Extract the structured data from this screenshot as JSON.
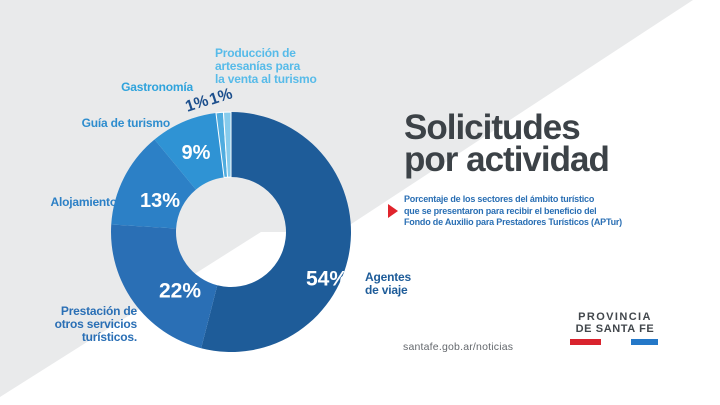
{
  "background": {
    "gray": "#E9EAEB",
    "white": "#FFFFFF"
  },
  "header": {
    "title": "Solicitudes\npor actividad",
    "title_color": "#3C4247",
    "subtitle": "Porcentaje de los sectores del ámbito turístico\nque se presentaron para recibir el beneficio del\nFondo de Auxilio para Prestadores Turísticos (APTur)",
    "subtitle_color": "#2A6FB4",
    "accent_red": "#E0242C"
  },
  "footer": {
    "url": "santafe.gob.ar/noticias"
  },
  "logo": {
    "line1": "PROVINCIA",
    "line2": "DE SANTA FE",
    "red_bar_color": "#D9232E",
    "blue_bar_color": "#2478C8"
  },
  "chart_data": {
    "type": "pie",
    "subtype": "donut",
    "title": "Solicitudes por actividad",
    "unit": "%",
    "total": 100,
    "start_angle_deg": 0,
    "direction": "clockwise",
    "segments": [
      {
        "label": "Agentes de viaje",
        "label_display": "Agentes\nde viaje",
        "value": 54,
        "color": "#1E5C99",
        "label_color": "#1E5C99",
        "value_label_color": "#FFFFFF"
      },
      {
        "label": "Prestación de otros servicios turísticos.",
        "label_display": "Prestación de\notros servicios\nturísticos.",
        "value": 22,
        "color": "#2A6FB5",
        "label_color": "#2A6FB5",
        "value_label_color": "#FFFFFF"
      },
      {
        "label": "Alojamiento",
        "label_display": "Alojamiento",
        "value": 13,
        "color": "#2C80C6",
        "label_color": "#2C80C6",
        "value_label_color": "#FFFFFF"
      },
      {
        "label": "Guía de turismo",
        "label_display": "Guía de turismo",
        "value": 9,
        "color": "#2F93D4",
        "label_color": "#2E8DCE",
        "value_label_color": "#FFFFFF"
      },
      {
        "label": "Gastronomía",
        "label_display": "Gastronomía",
        "value": 1,
        "color": "#4FACDF",
        "label_color": "#2FA3DC",
        "value_label_color": "#1B4E8C"
      },
      {
        "label": "Producción de artesanías para la venta al turismo",
        "label_display": "Producción de\nartesanías para\nla venta al turismo",
        "value": 1,
        "color": "#86CBEC",
        "label_color": "#57BBE9",
        "value_label_color": "#1B4E8C"
      }
    ]
  }
}
